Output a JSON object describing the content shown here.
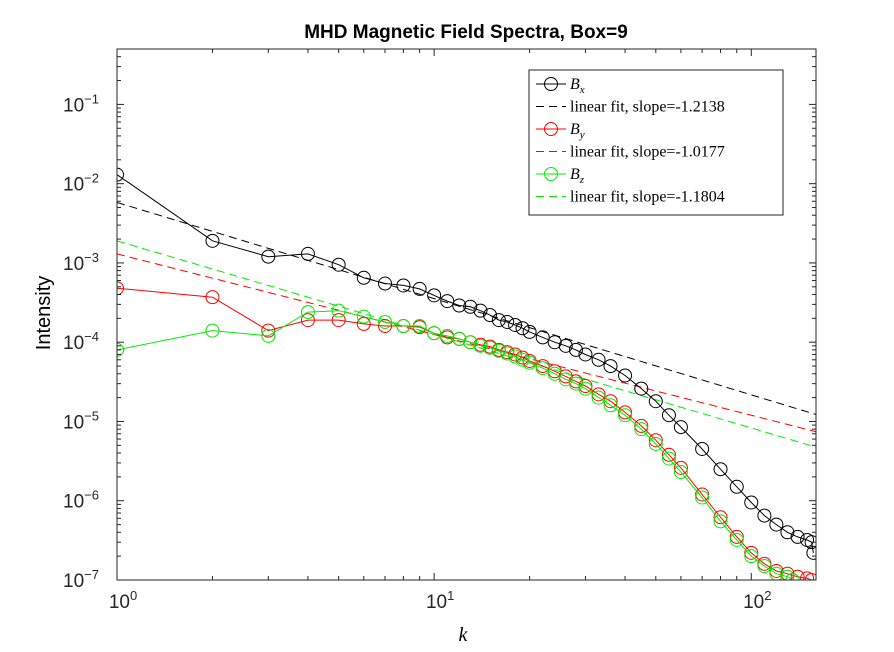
{
  "chart_data": {
    "type": "line",
    "title": "MHD Magnetic Field Spectra, Box=9",
    "xlabel": "k",
    "ylabel": "Intensity",
    "xscale": "log",
    "yscale": "log",
    "xlim": [
      1,
      160
    ],
    "ylim": [
      1e-07,
      0.5
    ],
    "xticks": [
      {
        "value": 1,
        "exp": "0"
      },
      {
        "value": 10,
        "exp": "1"
      },
      {
        "value": 100,
        "exp": "2"
      }
    ],
    "yticks": [
      {
        "value": 1e-07,
        "exp": "-7"
      },
      {
        "value": 1e-06,
        "exp": "-6"
      },
      {
        "value": 1e-05,
        "exp": "-5"
      },
      {
        "value": 0.0001,
        "exp": "-4"
      },
      {
        "value": 0.001,
        "exp": "-3"
      },
      {
        "value": 0.01,
        "exp": "-2"
      },
      {
        "value": 0.1,
        "exp": "-1"
      }
    ],
    "grid": false,
    "legend": "top-right",
    "series": [
      {
        "name": "B",
        "subscript": "x",
        "color": "#000000",
        "x": [
          1,
          2,
          3,
          4,
          5,
          6,
          7,
          8,
          9,
          10,
          11,
          12,
          13,
          14,
          15,
          16,
          17,
          18,
          19,
          20,
          22,
          24,
          26,
          28,
          30,
          33,
          36,
          40,
          45,
          50,
          55,
          60,
          70,
          80,
          90,
          100,
          110,
          120,
          130,
          140,
          150,
          155,
          157
        ],
        "y": [
          0.013,
          0.0019,
          0.0012,
          0.0013,
          0.00095,
          0.00065,
          0.00055,
          0.00052,
          0.00047,
          0.00039,
          0.00033,
          0.00029,
          0.00028,
          0.00025,
          0.00022,
          0.00019,
          0.00018,
          0.000165,
          0.00015,
          0.000135,
          0.000115,
          0.0001,
          9e-05,
          8e-05,
          7e-05,
          6e-05,
          5e-05,
          3.8e-05,
          2.6e-05,
          1.8e-05,
          1.2e-05,
          8.5e-06,
          4.5e-06,
          2.5e-06,
          1.5e-06,
          9.5e-07,
          6.5e-07,
          5e-07,
          4e-07,
          3.5e-07,
          3.2e-07,
          3e-07,
          2.2e-07
        ]
      },
      {
        "name": "linear fit, slope=-1.2138",
        "color": "#000000",
        "dashed": true,
        "slope": -1.2138,
        "intercept": 0.0058
      },
      {
        "name": "B",
        "subscript": "y",
        "color": "#ff0000",
        "x": [
          1,
          2,
          3,
          4,
          5,
          6,
          7,
          8,
          9,
          10,
          11,
          12,
          13,
          14,
          15,
          16,
          17,
          18,
          19,
          20,
          22,
          24,
          26,
          28,
          30,
          33,
          36,
          40,
          45,
          50,
          55,
          60,
          70,
          80,
          90,
          100,
          110,
          120,
          130,
          140,
          150,
          155
        ],
        "y": [
          0.00048,
          0.00037,
          0.00014,
          0.00019,
          0.00019,
          0.00017,
          0.00016,
          0.00016,
          0.000155,
          0.00013,
          0.000115,
          0.00011,
          0.0001,
          9.3e-05,
          8.8e-05,
          8e-05,
          7.5e-05,
          7e-05,
          6.4e-05,
          5.8e-05,
          5e-05,
          4.3e-05,
          3.7e-05,
          3.2e-05,
          2.8e-05,
          2.2e-05,
          1.8e-05,
          1.3e-05,
          8.8e-06,
          5.8e-06,
          3.8e-06,
          2.6e-06,
          1.2e-06,
          6.2e-07,
          3.5e-07,
          2.2e-07,
          1.6e-07,
          1.3e-07,
          1.2e-07,
          1.1e-07,
          1.05e-07,
          1e-07
        ]
      },
      {
        "name": "linear fit, slope=-1.0177",
        "color": "#ff0000",
        "dashed": true,
        "slope": -1.0177,
        "intercept": 0.0013
      },
      {
        "name": "B",
        "subscript": "z",
        "color": "#00ee00",
        "x": [
          1,
          2,
          3,
          4,
          5,
          6,
          7,
          8,
          9,
          10,
          11,
          12,
          13,
          14,
          15,
          16,
          17,
          18,
          19,
          20,
          22,
          24,
          26,
          28,
          30,
          33,
          36,
          40,
          45,
          50,
          55,
          60,
          70,
          80,
          90,
          100,
          110,
          120,
          130,
          135
        ],
        "y": [
          8e-05,
          0.00014,
          0.00012,
          0.00024,
          0.00025,
          0.00021,
          0.00018,
          0.00016,
          0.00016,
          0.00013,
          0.00012,
          0.00011,
          0.0001,
          9e-05,
          8.5e-05,
          7.8e-05,
          7.2e-05,
          6.6e-05,
          6e-05,
          5.5e-05,
          4.7e-05,
          4e-05,
          3.4e-05,
          3e-05,
          2.6e-05,
          2e-05,
          1.6e-05,
          1.2e-05,
          8e-06,
          5.2e-06,
          3.4e-06,
          2.3e-06,
          1.1e-06,
          5.5e-07,
          3.2e-07,
          2e-07,
          1.5e-07,
          1.2e-07,
          1.1e-07,
          1e-07
        ]
      },
      {
        "name": "linear fit, slope=-1.1804",
        "color": "#00ee00",
        "dashed": true,
        "slope": -1.1804,
        "intercept": 0.0019
      }
    ]
  }
}
